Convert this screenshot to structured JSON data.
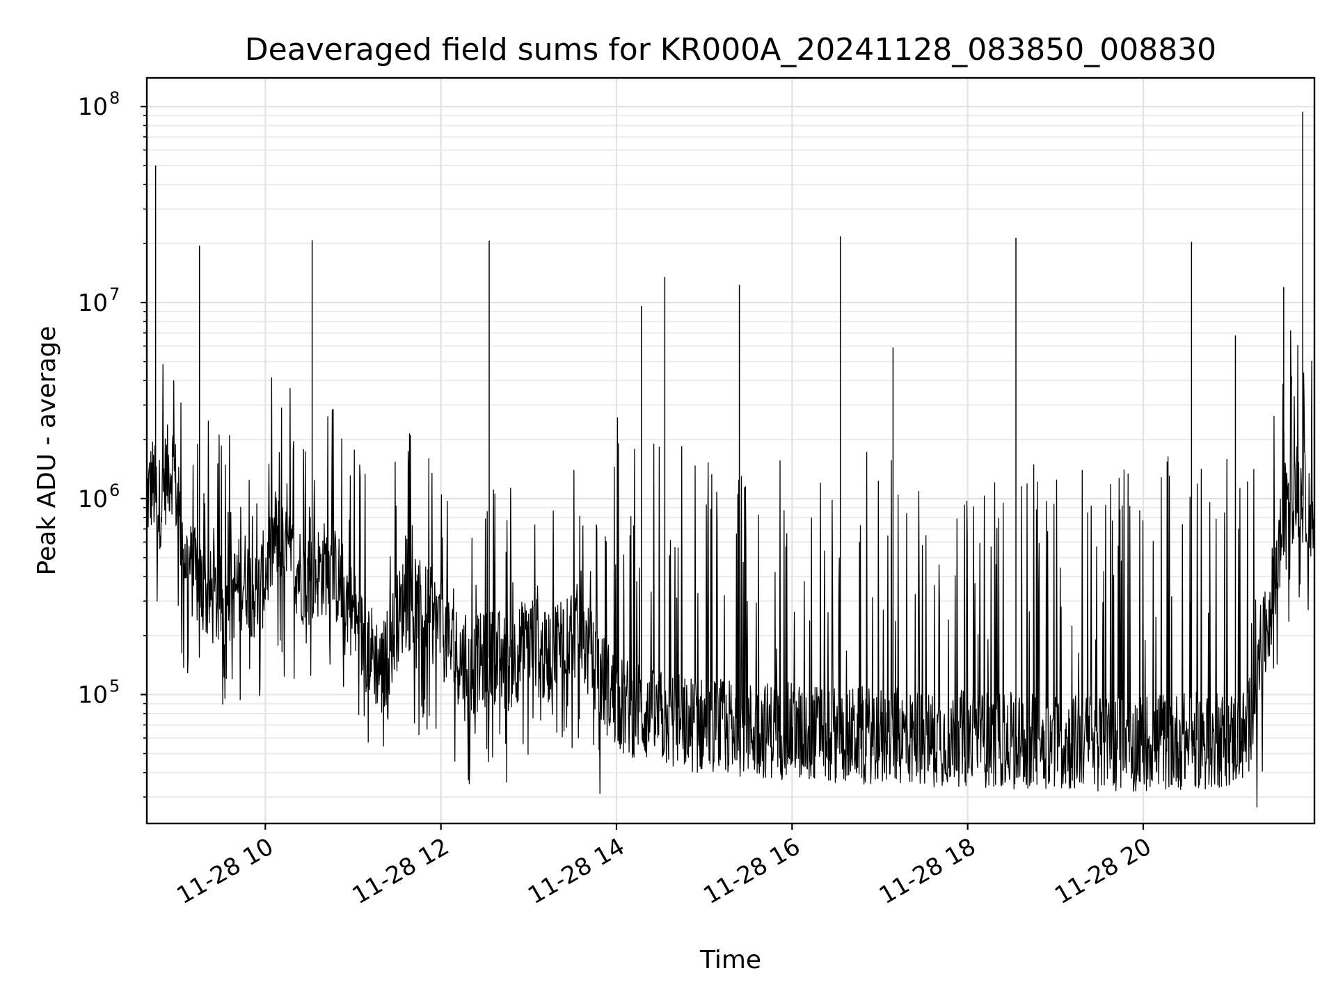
{
  "chart_data": {
    "type": "line",
    "title": "Deaveraged field sums for KR000A_20241128_083850_008830",
    "xlabel": "Time",
    "ylabel": "Peak ADU - average",
    "yscale": "log",
    "grid": true,
    "xlim": [
      "2024-11-28T08:39",
      "2024-11-28T21:57"
    ],
    "ylim": [
      22000,
      140000000
    ],
    "x_ticks": [
      {
        "value": "2024-11-28T10:00",
        "label": "11-28 10"
      },
      {
        "value": "2024-11-28T12:00",
        "label": "11-28 12"
      },
      {
        "value": "2024-11-28T14:00",
        "label": "11-28 14"
      },
      {
        "value": "2024-11-28T16:00",
        "label": "11-28 16"
      },
      {
        "value": "2024-11-28T18:00",
        "label": "11-28 18"
      },
      {
        "value": "2024-11-28T20:00",
        "label": "11-28 20"
      }
    ],
    "y_ticks": [
      {
        "value": 100000,
        "base": "10",
        "exp": "5"
      },
      {
        "value": 1000000,
        "base": "10",
        "exp": "6"
      },
      {
        "value": 10000000,
        "base": "10",
        "exp": "7"
      },
      {
        "value": 100000000,
        "base": "10",
        "exp": "8"
      }
    ],
    "line_color": "#000000",
    "series": [
      {
        "x": [
          "2024-11-28T08:39",
          "2024-11-28T08:43",
          "2024-11-28T08:47",
          "2024-11-28T08:52",
          "2024-11-28T08:57",
          "2024-11-28T09:03",
          "2024-11-28T09:08",
          "2024-11-28T09:14",
          "2024-11-28T09:20",
          "2024-11-28T09:27",
          "2024-11-28T09:33",
          "2024-11-28T09:40",
          "2024-11-28T09:47",
          "2024-11-28T09:54",
          "2024-11-28T10:00",
          "2024-11-28T10:07",
          "2024-11-28T10:14",
          "2024-11-28T10:21",
          "2024-11-28T10:28",
          "2024-11-28T10:35",
          "2024-11-28T10:43",
          "2024-11-28T10:50",
          "2024-11-28T10:57",
          "2024-11-28T11:05",
          "2024-11-28T11:12",
          "2024-11-28T11:20",
          "2024-11-28T11:27",
          "2024-11-28T11:35",
          "2024-11-28T11:43",
          "2024-11-28T11:51",
          "2024-11-28T11:58",
          "2024-11-28T12:06",
          "2024-11-28T12:14",
          "2024-11-28T12:22",
          "2024-11-28T12:30",
          "2024-11-28T12:38",
          "2024-11-28T12:46",
          "2024-11-28T12:55",
          "2024-11-28T13:03",
          "2024-11-28T13:11",
          "2024-11-28T13:19",
          "2024-11-28T13:28",
          "2024-11-28T13:36",
          "2024-11-28T13:45",
          "2024-11-28T13:53",
          "2024-11-28T14:02",
          "2024-11-28T14:10",
          "2024-11-28T14:19",
          "2024-11-28T14:27",
          "2024-11-28T14:36",
          "2024-11-28T14:45",
          "2024-11-28T14:54",
          "2024-11-28T15:02",
          "2024-11-28T15:11",
          "2024-11-28T15:20",
          "2024-11-28T15:29",
          "2024-11-28T15:38",
          "2024-11-28T15:47",
          "2024-11-28T15:56",
          "2024-11-28T16:05",
          "2024-11-28T16:14",
          "2024-11-28T16:23",
          "2024-11-28T16:32",
          "2024-11-28T16:41",
          "2024-11-28T16:50",
          "2024-11-28T16:59",
          "2024-11-28T17:08",
          "2024-11-28T17:17",
          "2024-11-28T17:26",
          "2024-11-28T17:35",
          "2024-11-28T17:44",
          "2024-11-28T17:53",
          "2024-11-28T18:02",
          "2024-11-28T18:11",
          "2024-11-28T18:20",
          "2024-11-28T18:29",
          "2024-11-28T18:38",
          "2024-11-28T18:47",
          "2024-11-28T18:56",
          "2024-11-28T19:05",
          "2024-11-28T19:14",
          "2024-11-28T19:23",
          "2024-11-28T19:32",
          "2024-11-28T19:41",
          "2024-11-28T19:50",
          "2024-11-28T19:59",
          "2024-11-28T20:08",
          "2024-11-28T20:17",
          "2024-11-28T20:26",
          "2024-11-28T20:35",
          "2024-11-28T20:44",
          "2024-11-28T20:53",
          "2024-11-28T21:02",
          "2024-11-28T21:11",
          "2024-11-28T21:20",
          "2024-11-28T21:29",
          "2024-11-28T21:38",
          "2024-11-28T21:47",
          "2024-11-28T21:57"
        ],
        "y": [
          1000000,
          1200000,
          900000,
          1300000,
          1500000,
          600000,
          450000,
          380000,
          320000,
          300000,
          280000,
          350000,
          400000,
          300000,
          420000,
          650000,
          500000,
          450000,
          380000,
          420000,
          450000,
          380000,
          300000,
          200000,
          170000,
          130000,
          200000,
          300000,
          280000,
          260000,
          230000,
          180000,
          150000,
          140000,
          150000,
          160000,
          140000,
          170000,
          190000,
          150000,
          180000,
          220000,
          200000,
          140000,
          110000,
          90000,
          85000,
          80000,
          75000,
          75000,
          72000,
          70000,
          70000,
          68000,
          68000,
          67000,
          66000,
          66000,
          65000,
          65000,
          64000,
          63000,
          63000,
          62000,
          62000,
          62000,
          61000,
          61000,
          60000,
          60000,
          60000,
          60000,
          59000,
          59000,
          59000,
          58000,
          58000,
          58000,
          58000,
          57000,
          57000,
          57000,
          57000,
          57000,
          57000,
          57000,
          58000,
          58000,
          58000,
          58000,
          58000,
          59000,
          60000,
          62000,
          140000,
          350000,
          1000000,
          1100000,
          800000
        ]
      }
    ],
    "spikes": [
      {
        "x": "2024-11-28T08:45",
        "y": 50000000
      },
      {
        "x": "2024-11-28T09:15",
        "y": 19500000
      },
      {
        "x": "2024-11-28T10:32",
        "y": 20800000
      },
      {
        "x": "2024-11-28T12:33",
        "y": 20700000
      },
      {
        "x": "2024-11-28T14:17",
        "y": 9600000
      },
      {
        "x": "2024-11-28T14:33",
        "y": 13500000
      },
      {
        "x": "2024-11-28T15:24",
        "y": 12300000
      },
      {
        "x": "2024-11-28T16:33",
        "y": 21800000
      },
      {
        "x": "2024-11-28T17:09",
        "y": 5900000
      },
      {
        "x": "2024-11-28T18:33",
        "y": 21400000
      },
      {
        "x": "2024-11-28T20:33",
        "y": 20400000
      },
      {
        "x": "2024-11-28T21:03",
        "y": 6800000
      },
      {
        "x": "2024-11-28T21:36",
        "y": 12000000
      },
      {
        "x": "2024-11-28T21:49",
        "y": 94000000
      }
    ]
  }
}
